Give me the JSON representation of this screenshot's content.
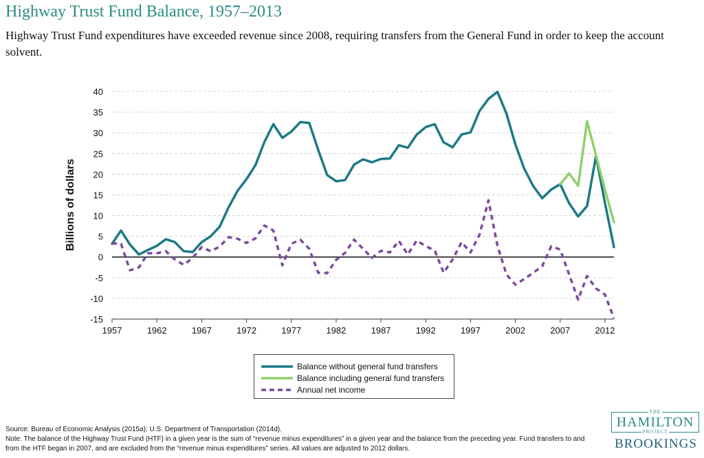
{
  "title": "Highway Trust Fund Balance, 1957–2013",
  "subtitle": "Highway Trust Fund expenditures have exceeded revenue since 2008, requiring transfers from the General Fund in order to keep the account solvent.",
  "chart_data": {
    "type": "line",
    "ylabel": "Billions of dollars",
    "xlabel": "",
    "xlim": [
      1957,
      2013
    ],
    "ylim": [
      -15,
      40
    ],
    "x_ticks": [
      1957,
      1962,
      1967,
      1972,
      1977,
      1982,
      1987,
      1992,
      1997,
      2002,
      2007,
      2012
    ],
    "y_ticks": [
      -15,
      -10,
      -5,
      0,
      5,
      10,
      15,
      20,
      25,
      30,
      35,
      40
    ],
    "grid": "horizontal-dashed",
    "zero_line": true,
    "legend_position": "bottom-center",
    "series": [
      {
        "name": "Balance without general fund transfers",
        "color": "#1b7a85",
        "style": "solid",
        "x": [
          1957,
          1958,
          1959,
          1960,
          1961,
          1962,
          1963,
          1964,
          1965,
          1966,
          1967,
          1968,
          1969,
          1970,
          1971,
          1972,
          1973,
          1974,
          1975,
          1976,
          1977,
          1978,
          1979,
          1980,
          1981,
          1982,
          1983,
          1984,
          1985,
          1986,
          1987,
          1988,
          1989,
          1990,
          1991,
          1992,
          1993,
          1994,
          1995,
          1996,
          1997,
          1998,
          1999,
          2000,
          2001,
          2002,
          2003,
          2004,
          2005,
          2006,
          2007,
          2008,
          2009,
          2010,
          2011,
          2012,
          2013
        ],
        "values": [
          3.2,
          6.4,
          3.0,
          0.6,
          1.7,
          2.7,
          4.3,
          3.6,
          1.4,
          1.2,
          3.6,
          5.0,
          7.3,
          12.0,
          16.0,
          18.8,
          22.2,
          27.8,
          32.1,
          28.8,
          30.3,
          32.6,
          32.4,
          25.9,
          19.8,
          18.3,
          18.6,
          22.3,
          23.6,
          22.9,
          23.7,
          23.8,
          27.0,
          26.4,
          29.6,
          31.4,
          32.1,
          27.7,
          26.5,
          29.6,
          30.1,
          35.3,
          38.2,
          39.9,
          34.7,
          27.2,
          21.3,
          17.1,
          14.2,
          16.3,
          17.6,
          13.0,
          9.8,
          12.3,
          24.4,
          13.0,
          2.4
        ]
      },
      {
        "name": "Balance including general fund transfers",
        "color": "#8fd16a",
        "style": "solid",
        "x": [
          2007,
          2008,
          2009,
          2010,
          2011,
          2012,
          2013
        ],
        "values": [
          17.6,
          20.2,
          17.2,
          32.8,
          24.6,
          16.2,
          8.4
        ]
      },
      {
        "name": "Annual net income",
        "color": "#7b4a9e",
        "style": "dashed",
        "x": [
          1957,
          1958,
          1959,
          1960,
          1961,
          1962,
          1963,
          1964,
          1965,
          1966,
          1967,
          1968,
          1969,
          1970,
          1971,
          1972,
          1973,
          1974,
          1975,
          1976,
          1977,
          1978,
          1979,
          1980,
          1981,
          1982,
          1983,
          1984,
          1985,
          1986,
          1987,
          1988,
          1989,
          1990,
          1991,
          1992,
          1993,
          1994,
          1995,
          1996,
          1997,
          1998,
          1999,
          2000,
          2001,
          2002,
          2003,
          2004,
          2005,
          2006,
          2007,
          2008,
          2009,
          2010,
          2011,
          2012,
          2013
        ],
        "values": [
          3.3,
          3.2,
          -3.2,
          -2.5,
          0.9,
          0.9,
          1.4,
          -0.6,
          -1.9,
          -0.2,
          2.4,
          1.4,
          2.5,
          4.8,
          4.4,
          3.4,
          4.5,
          7.6,
          6.4,
          -2.0,
          3.2,
          4.2,
          2.0,
          -3.8,
          -3.9,
          -0.7,
          1.0,
          4.2,
          2.0,
          -0.2,
          1.5,
          1.1,
          3.9,
          0.6,
          4.0,
          2.6,
          1.6,
          -3.8,
          -0.6,
          3.6,
          1.1,
          5.4,
          13.7,
          2.8,
          -4.2,
          -6.7,
          -5.3,
          -3.8,
          -2.2,
          2.6,
          1.8,
          -4.2,
          -10.3,
          -4.6,
          -7.6,
          -9.1,
          -14.8
        ]
      }
    ]
  },
  "source": "Source: Bureau of Economic Analysis (2015a); U.S. Department of Transportation (2014d).",
  "note": "Note: The balance of the Highway Trust Fund (HTF) in a given year is the sum of “revenue minus expenditures” in a given year and the balance from the preceding year. Fund transfers to and from the HTF began in 2007, and are excluded from the “revenue minus expenditures” series. All values are adjusted to 2012 dollars.",
  "logo": {
    "the": "THE",
    "hamilton": "HAMILTON",
    "project": "PROJECT",
    "brookings": "BROOKINGS"
  }
}
